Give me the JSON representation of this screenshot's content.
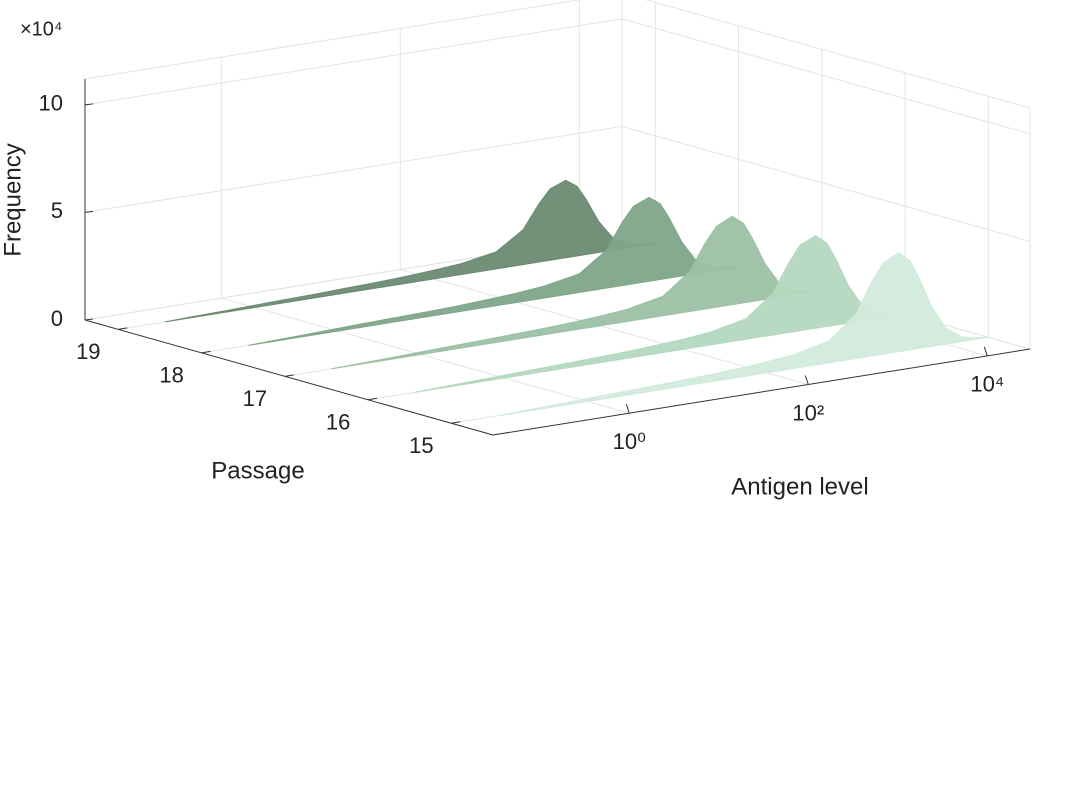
{
  "chart_data": {
    "type": "ridgeline3d",
    "z_multiplier_label": "×10⁴",
    "zlabel": "Frequency",
    "ylabel": "Passage",
    "xlabel": "Antigen level",
    "xscale": "log",
    "xlim": [
      0.03,
      30000
    ],
    "xticks": [
      {
        "value": 1,
        "label": "10⁰"
      },
      {
        "value": 100,
        "label": "10²"
      },
      {
        "value": 10000,
        "label": "10⁴"
      }
    ],
    "ylim": [
      14.5,
      19.4
    ],
    "yticks": [
      15,
      16,
      17,
      18,
      19
    ],
    "zlim": [
      0,
      11.2
    ],
    "zticks": [
      0,
      5,
      10
    ],
    "grid": true,
    "x": [
      0.1,
      0.2,
      0.5,
      1,
      2,
      5,
      10,
      20,
      50,
      100,
      200,
      500,
      1000,
      1500,
      2000,
      3000,
      4000,
      5000,
      7000,
      10000,
      15000,
      20000,
      30000
    ],
    "series": [
      {
        "passage": 19,
        "color": "#6b8a72",
        "values": [
          0,
          0.04,
          0.07,
          0.11,
          0.14,
          0.18,
          0.22,
          0.25,
          0.32,
          0.4,
          0.5,
          0.79,
          1.62,
          2.7,
          3.31,
          3.6,
          3.24,
          2.59,
          1.44,
          0.58,
          0.18,
          0.07,
          0
        ]
      },
      {
        "passage": 18,
        "color": "#80a588",
        "values": [
          0,
          0.04,
          0.08,
          0.12,
          0.16,
          0.2,
          0.23,
          0.27,
          0.35,
          0.43,
          0.55,
          0.86,
          1.76,
          2.93,
          3.59,
          3.9,
          3.51,
          2.81,
          1.56,
          0.62,
          0.2,
          0.08,
          0
        ]
      },
      {
        "passage": 17,
        "color": "#9bc0a4",
        "values": [
          0,
          0.04,
          0.08,
          0.12,
          0.16,
          0.21,
          0.25,
          0.29,
          0.37,
          0.45,
          0.57,
          0.9,
          1.85,
          3.08,
          3.77,
          4.1,
          3.69,
          2.95,
          1.64,
          0.66,
          0.21,
          0.08,
          0
        ]
      },
      {
        "passage": 16,
        "color": "#b5d8bf",
        "values": [
          0,
          0.04,
          0.09,
          0.13,
          0.17,
          0.22,
          0.26,
          0.3,
          0.39,
          0.47,
          0.6,
          0.95,
          1.94,
          3.23,
          3.96,
          4.3,
          3.87,
          3.1,
          1.72,
          0.69,
          0.22,
          0.09,
          0
        ]
      },
      {
        "passage": 15,
        "color": "#d2ebdd",
        "values": [
          0,
          0.05,
          0.09,
          0.14,
          0.18,
          0.23,
          0.28,
          0.32,
          0.41,
          0.51,
          0.64,
          1.01,
          2.07,
          3.45,
          4.23,
          4.6,
          4.14,
          3.31,
          1.84,
          0.74,
          0.23,
          0.09,
          0
        ]
      }
    ]
  }
}
